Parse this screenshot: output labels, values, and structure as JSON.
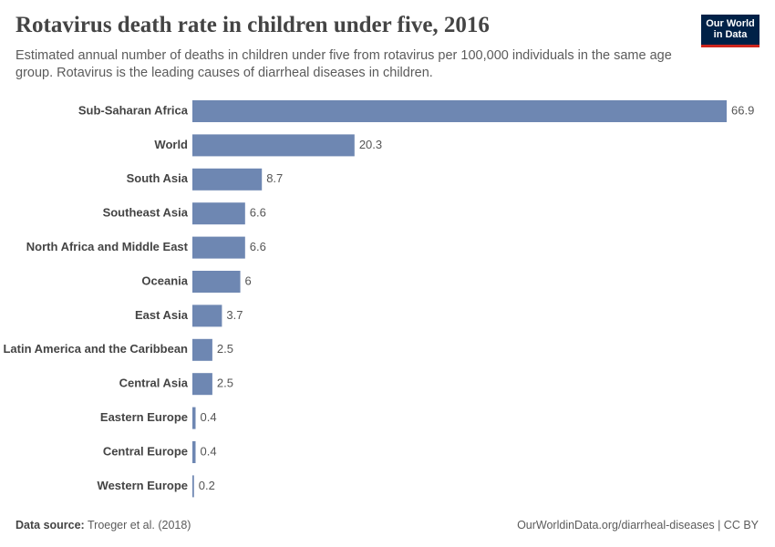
{
  "chart_data": {
    "type": "bar",
    "orientation": "horizontal",
    "title": "Rotavirus death rate in children under five, 2016",
    "subtitle": "Estimated annual number of deaths in children under five from rotavirus per 100,000 individuals in the same age group. Rotavirus is the leading causes of diarrheal diseases in children.",
    "categories": [
      "Sub-Saharan Africa",
      "World",
      "South Asia",
      "Southeast Asia",
      "North Africa and Middle East",
      "Oceania",
      "East Asia",
      "Latin America and the Caribbean",
      "Central Asia",
      "Eastern Europe",
      "Central Europe",
      "Western Europe"
    ],
    "values": [
      66.9,
      20.3,
      8.7,
      6.6,
      6.6,
      6,
      3.7,
      2.5,
      2.5,
      0.4,
      0.4,
      0.2
    ],
    "color": "#6e87b2",
    "source_label": "Data source:",
    "source": "Troeger et al. (2018)",
    "footer": "OurWorldinData.org/diarrheal-diseases | CC BY",
    "logo": [
      "Our World",
      "in Data"
    ]
  }
}
